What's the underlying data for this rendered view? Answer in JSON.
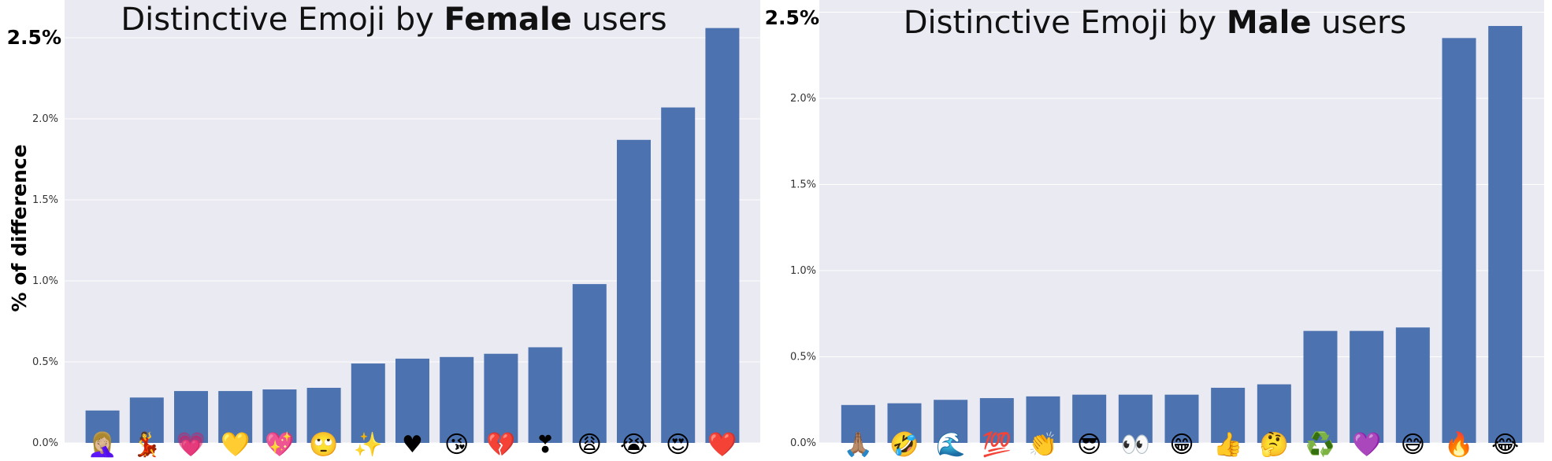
{
  "chart_data": [
    {
      "type": "bar",
      "title_prefix": "Distinctive Emoji by ",
      "title_bold": "Female",
      "title_suffix": " users",
      "ylabel": "% of difference",
      "ylim": [
        0,
        2.55
      ],
      "yticks": [
        "0.0%",
        "0.5%",
        "1.0%",
        "1.5%",
        "2.0%"
      ],
      "ytick_top": "2.5%",
      "grid": true,
      "background": "#eaeaf2",
      "bar_color": "#4c72b0",
      "categories": [
        "🤦🏼‍♀️",
        "💃",
        "💗",
        "💛",
        "💖",
        "🙄",
        "✨",
        "♥",
        "😘",
        "💔",
        "❣",
        "😩",
        "😭",
        "😍",
        "❤️"
      ],
      "values": [
        0.2,
        0.28,
        0.32,
        0.32,
        0.33,
        0.34,
        0.49,
        0.52,
        0.53,
        0.55,
        0.59,
        0.98,
        1.87,
        2.07,
        2.56
      ]
    },
    {
      "type": "bar",
      "title_prefix": "Distinctive Emoji by ",
      "title_bold": "Male",
      "title_suffix": " users",
      "ylabel": "",
      "ylim": [
        0,
        2.5
      ],
      "yticks": [
        "0.0%",
        "0.5%",
        "1.0%",
        "1.5%",
        "2.0%"
      ],
      "ytick_top": "2.5%",
      "grid": true,
      "background": "#eaeaf2",
      "bar_color": "#4c72b0",
      "categories": [
        "🙏🏽",
        "🤣",
        "🌊",
        "💯",
        "👏",
        "😎",
        "👀",
        "😁",
        "👍",
        "🤔",
        "♻️",
        "💜",
        "😅",
        "🔥",
        "😂"
      ],
      "values": [
        0.22,
        0.23,
        0.25,
        0.26,
        0.27,
        0.28,
        0.28,
        0.28,
        0.32,
        0.34,
        0.65,
        0.65,
        0.67,
        2.35,
        2.42
      ]
    }
  ]
}
